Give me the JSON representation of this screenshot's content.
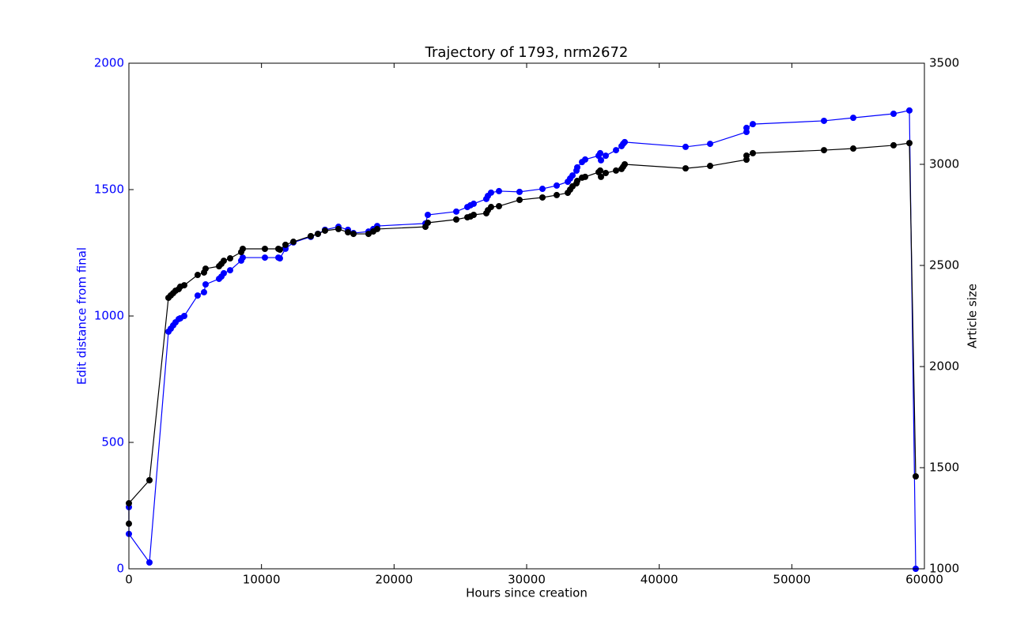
{
  "chart_data": {
    "type": "line",
    "title": "Trajectory of 1793, nrm2672",
    "xlabel": "Hours since creation",
    "ylabel": "Edit distance from final",
    "y2label": "Article size",
    "x": [
      0,
      0,
      1550,
      2982,
      3161,
      3340,
      3519,
      3757,
      3877,
      4175,
      5186,
      5666,
      5785,
      6799,
      6978,
      7157,
      7634,
      8469,
      8588,
      10258,
      11272,
      11392,
      11809,
      12406,
      13718,
      14255,
      14791,
      15805,
      16521,
      16939,
      18072,
      18430,
      18728,
      22366,
      22545,
      24692,
      25527,
      25765,
      26004,
      26958,
      27078,
      27316,
      27913,
      29463,
      31193,
      32266,
      33101,
      33280,
      33459,
      33757,
      33817,
      34175,
      34414,
      35427,
      35547,
      35606,
      35964,
      36740,
      37157,
      37276,
      37396,
      41988,
      43837,
      46581,
      46581,
      47058,
      52425,
      54632,
      57674,
      58867,
      59344
    ],
    "series": [
      {
        "color": "#0000ff",
        "axis": "y",
        "values": [
          244,
          138,
          25,
          938,
          950,
          963,
          975,
          988,
          991,
          1000,
          1081,
          1094,
          1125,
          1147,
          1156,
          1169,
          1181,
          1219,
          1231,
          1231,
          1231,
          1228,
          1266,
          1291,
          1313,
          1325,
          1341,
          1353,
          1341,
          1328,
          1334,
          1344,
          1356,
          1366,
          1400,
          1413,
          1431,
          1438,
          1444,
          1463,
          1475,
          1488,
          1494,
          1491,
          1503,
          1516,
          1531,
          1544,
          1556,
          1575,
          1588,
          1609,
          1619,
          1634,
          1644,
          1616,
          1634,
          1656,
          1672,
          1681,
          1688,
          1669,
          1681,
          1728,
          1744,
          1759,
          1772,
          1784,
          1800,
          1813,
          0
        ]
      },
      {
        "color": "#000000",
        "axis": "y2",
        "values": [
          1223,
          1324,
          1438,
          2340,
          2352,
          2363,
          2375,
          2383,
          2395,
          2402,
          2453,
          2465,
          2484,
          2496,
          2508,
          2523,
          2535,
          2566,
          2582,
          2582,
          2582,
          2578,
          2602,
          2617,
          2645,
          2656,
          2672,
          2680,
          2664,
          2656,
          2656,
          2668,
          2680,
          2691,
          2711,
          2727,
          2738,
          2742,
          2750,
          2758,
          2773,
          2789,
          2793,
          2824,
          2836,
          2848,
          2859,
          2875,
          2891,
          2906,
          2918,
          2934,
          2938,
          2961,
          2969,
          2938,
          2957,
          2969,
          2977,
          2988,
          3000,
          2980,
          2992,
          3023,
          3043,
          3055,
          3070,
          3078,
          3094,
          3105,
          1457
        ]
      }
    ],
    "xlim": [
      0,
      60000
    ],
    "xticks": [
      0,
      10000,
      20000,
      30000,
      40000,
      50000,
      60000
    ],
    "ylim": [
      0,
      2000
    ],
    "yticks": [
      0,
      500,
      1000,
      1500,
      2000
    ],
    "y2lim": [
      1000,
      3500
    ],
    "y2ticks": [
      1000,
      1500,
      2000,
      2500,
      3000,
      3500
    ],
    "grid": false
  }
}
